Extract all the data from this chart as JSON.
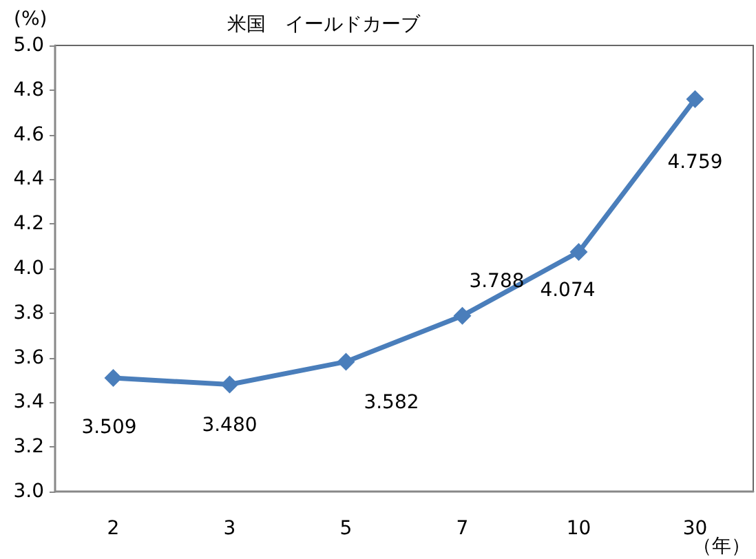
{
  "chart_data": {
    "type": "line",
    "title": "米国　イールドカーブ",
    "ylabel": "(%)",
    "xlabel": "（年）",
    "categories": [
      "2",
      "3",
      "5",
      "7",
      "10",
      "30"
    ],
    "series": [
      {
        "color": "#4a7ebb",
        "values": [
          3.509,
          3.48,
          3.582,
          3.788,
          4.074,
          4.759
        ],
        "value_labels": [
          "3.509",
          "3.480",
          "3.582",
          "3.788",
          "4.074",
          "4.759"
        ]
      }
    ],
    "ylim": [
      3,
      5
    ],
    "yticks": [
      {
        "value": 3,
        "label": "3.0"
      },
      {
        "value": 3.2,
        "label": "3.2"
      },
      {
        "value": 3.4,
        "label": "3.4"
      },
      {
        "value": 3.6,
        "label": "3.6"
      },
      {
        "value": 3.8,
        "label": "3.8"
      },
      {
        "value": 4,
        "label": "4.0"
      },
      {
        "value": 4.2,
        "label": "4.2"
      },
      {
        "value": 4.4,
        "label": "4.4"
      },
      {
        "value": 4.6,
        "label": "4.6"
      },
      {
        "value": 4.8,
        "label": "4.8"
      },
      {
        "value": 5,
        "label": "5.0"
      }
    ],
    "grid": false,
    "marker": "diamond",
    "line_style": "solid"
  }
}
